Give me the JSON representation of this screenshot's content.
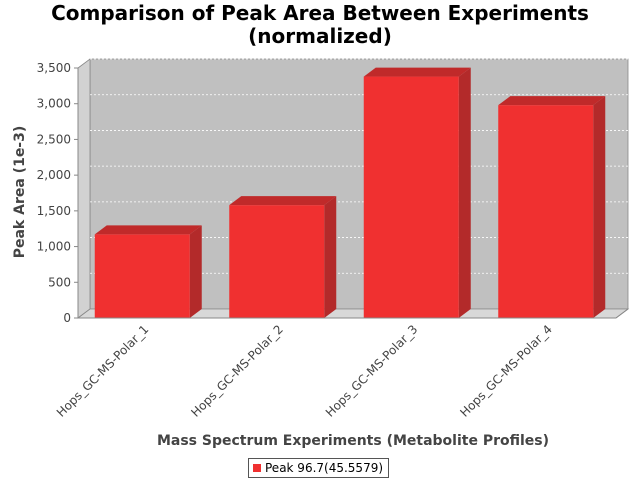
{
  "chart_data": {
    "type": "bar",
    "title_lines": [
      "Comparison of Peak Area Between Experiments",
      "(normalized)"
    ],
    "xlabel": "Mass Spectrum Experiments (Metabolite Profiles)",
    "ylabel": "Peak Area (1e-3)",
    "categories": [
      "Hops_GC-MS-Polar_1",
      "Hops_GC-MS-Polar_2",
      "Hops_GC-MS-Polar_3",
      "Hops_GC-MS-Polar_4"
    ],
    "series": [
      {
        "name": "Peak 96.7(45.5579)",
        "values": [
          1170,
          1580,
          3380,
          2980
        ],
        "color": "#f03030"
      }
    ],
    "yticks": [
      0,
      500,
      1000,
      1500,
      2000,
      2500,
      3000,
      3500
    ],
    "ytick_labels": [
      "0",
      "500",
      "1,000",
      "1,500",
      "2,000",
      "2,500",
      "3,000",
      "3,500"
    ],
    "ylim": [
      0,
      3500
    ],
    "grid": true,
    "legend_position": "bottom"
  }
}
